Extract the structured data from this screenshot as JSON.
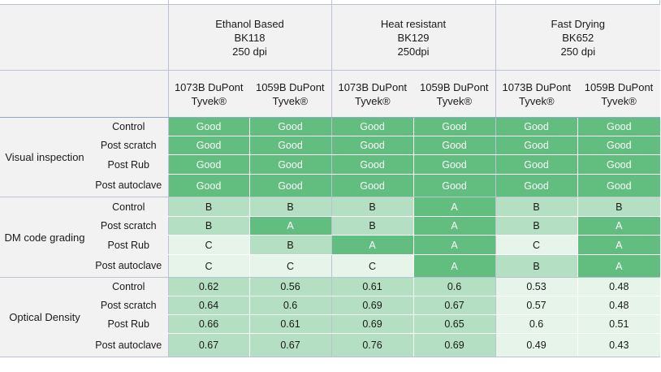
{
  "columns": {
    "groups": [
      {
        "title": "Ethanol Based",
        "code": "BK118",
        "resolution": "250 dpi"
      },
      {
        "title": "Heat resistant",
        "code": "BK129",
        "resolution": "250dpi"
      },
      {
        "title": "Fast Drying",
        "code": "BK652",
        "resolution": "250 dpi"
      }
    ],
    "materials": [
      {
        "line1": "1073B DuPont",
        "line2": "Tyvek®"
      },
      {
        "line1": "1059B DuPont",
        "line2": "Tyvek®"
      },
      {
        "line1": "1073B DuPont",
        "line2": "Tyvek®"
      },
      {
        "line1": "1059B DuPont",
        "line2": "Tyvek®"
      },
      {
        "line1": "1073B DuPont",
        "line2": "Tyvek®"
      },
      {
        "line1": "1059B DuPont",
        "line2": "Tyvek®"
      }
    ]
  },
  "categories": [
    {
      "name": "Visual inspection",
      "rows": [
        {
          "label": "Control",
          "values": [
            "Good",
            "Good",
            "Good",
            "Good",
            "Good",
            "Good"
          ],
          "levels": [
            "strong",
            "strong",
            "strong",
            "strong",
            "strong",
            "strong"
          ]
        },
        {
          "label": "Post scratch",
          "values": [
            "Good",
            "Good",
            "Good",
            "Good",
            "Good",
            "Good"
          ],
          "levels": [
            "strong",
            "strong",
            "strong",
            "strong",
            "strong",
            "strong"
          ]
        },
        {
          "label": "Post Rub",
          "values": [
            "Good",
            "Good",
            "Good",
            "Good",
            "Good",
            "Good"
          ],
          "levels": [
            "strong",
            "strong",
            "strong",
            "strong",
            "strong",
            "strong"
          ]
        },
        {
          "label": "Post autoclave",
          "values": [
            "Good",
            "Good",
            "Good",
            "Good",
            "Good",
            "Good"
          ],
          "levels": [
            "strong",
            "strong",
            "strong",
            "strong",
            "strong",
            "strong"
          ]
        }
      ]
    },
    {
      "name": "DM code grading",
      "rows": [
        {
          "label": "Control",
          "values": [
            "B",
            "B",
            "B",
            "A",
            "B",
            "B"
          ],
          "levels": [
            "med",
            "med",
            "med",
            "strong",
            "med",
            "med"
          ]
        },
        {
          "label": "Post scratch",
          "values": [
            "B",
            "A",
            "B",
            "A",
            "B",
            "A"
          ],
          "levels": [
            "med",
            "strong",
            "med",
            "strong",
            "med",
            "strong"
          ]
        },
        {
          "label": "Post Rub",
          "values": [
            "C",
            "B",
            "A",
            "A",
            "C",
            "A"
          ],
          "levels": [
            "light",
            "med",
            "strong",
            "strong",
            "light",
            "strong"
          ]
        },
        {
          "label": "Post autoclave",
          "values": [
            "C",
            "C",
            "C",
            "A",
            "B",
            "A"
          ],
          "levels": [
            "light",
            "light",
            "light",
            "strong",
            "med",
            "strong"
          ]
        }
      ]
    },
    {
      "name": "Optical Density",
      "rows": [
        {
          "label": "Control",
          "values": [
            "0.62",
            "0.56",
            "0.61",
            "0.6",
            "0.53",
            "0.48"
          ],
          "levels": [
            "med",
            "med",
            "med",
            "med",
            "light",
            "light"
          ]
        },
        {
          "label": "Post scratch",
          "values": [
            "0.64",
            "0.6",
            "0.69",
            "0.67",
            "0.57",
            "0.48"
          ],
          "levels": [
            "med",
            "med",
            "med",
            "med",
            "light",
            "light"
          ]
        },
        {
          "label": "Post Rub",
          "values": [
            "0.66",
            "0.61",
            "0.69",
            "0.65",
            "0.6",
            "0.51"
          ],
          "levels": [
            "med",
            "med",
            "med",
            "med",
            "light",
            "light"
          ]
        },
        {
          "label": "Post autoclave",
          "values": [
            "0.67",
            "0.67",
            "0.76",
            "0.69",
            "0.49",
            "0.43"
          ],
          "levels": [
            "med",
            "med",
            "med",
            "med",
            "light",
            "light"
          ]
        }
      ]
    }
  ],
  "colors": {
    "strong": "#61be7e",
    "medium": "#b5dfc2",
    "light": "#e6f4ea",
    "header": "#f2f2f2",
    "border": "#b9c3d3"
  }
}
